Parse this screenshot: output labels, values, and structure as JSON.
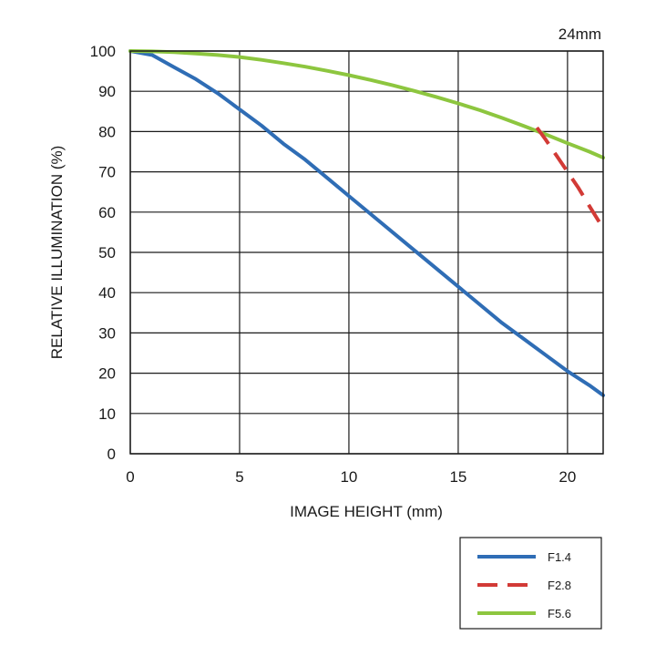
{
  "chart_data": {
    "type": "line",
    "title": "24mm",
    "xlabel": "IMAGE HEIGHT (mm)",
    "ylabel": "RELATIVE ILLUMINATION (%)",
    "xlim": [
      0,
      21.63
    ],
    "ylim": [
      0,
      100
    ],
    "xticks": [
      "0",
      "5",
      "10",
      "15",
      "20"
    ],
    "yticks": [
      "0",
      "10",
      "20",
      "30",
      "40",
      "50",
      "60",
      "70",
      "80",
      "90",
      "100"
    ],
    "grid": true,
    "legend_position": "bottom-right, below plot",
    "series": [
      {
        "name": "F1.4",
        "color": "#2f6db5",
        "dash": "solid",
        "x": [
          0,
          1,
          2,
          3,
          4,
          5,
          6,
          7,
          8,
          9,
          10,
          11,
          12,
          13,
          14,
          15,
          16,
          17,
          18,
          19,
          20,
          21,
          21.63
        ],
        "y": [
          100,
          99,
          96,
          93,
          89.5,
          85.5,
          81.5,
          77,
          73,
          68.5,
          64,
          59.5,
          55,
          50.5,
          46,
          41.5,
          37,
          32.5,
          28.5,
          24.5,
          20.5,
          17,
          14.5
        ]
      },
      {
        "name": "F2.8",
        "color": "#d23a36",
        "dash": "dashed",
        "x": [
          18.6,
          19,
          19.5,
          20,
          20.5,
          21,
          21.63
        ],
        "y": [
          81,
          78,
          74,
          70,
          66,
          61.5,
          56
        ]
      },
      {
        "name": "F5.6",
        "color": "#8dc63f",
        "dash": "solid",
        "x": [
          0,
          1,
          2,
          3,
          4,
          5,
          6,
          7,
          8,
          9,
          10,
          11,
          12,
          13,
          14,
          15,
          16,
          17,
          18,
          19,
          20,
          21,
          21.63
        ],
        "y": [
          100,
          99.9,
          99.7,
          99.4,
          99,
          98.5,
          97.8,
          97,
          96.1,
          95.1,
          94,
          92.8,
          91.5,
          90.1,
          88.6,
          87,
          85.3,
          83.4,
          81.4,
          79.3,
          77.1,
          75,
          73.5
        ]
      }
    ]
  }
}
